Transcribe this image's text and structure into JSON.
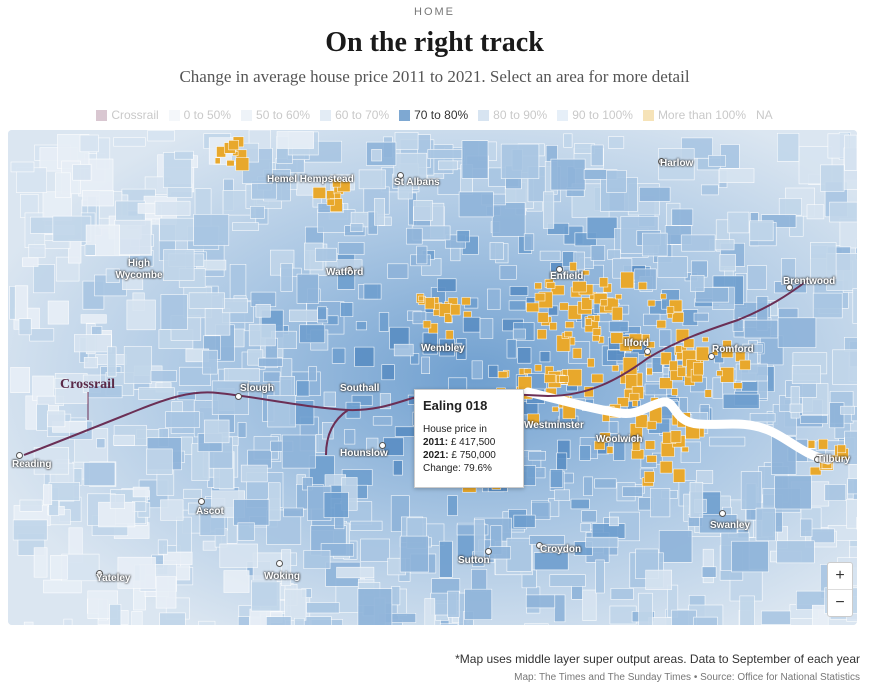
{
  "header": {
    "section": "HOME",
    "title": "On the right track",
    "subtitle": "Change in average house price 2011 to 2021. Select an area for more detail"
  },
  "legend": [
    {
      "label": "Crossrail",
      "color": "#d9c7d1",
      "active": false
    },
    {
      "label": "0 to 50%",
      "color": "#f4f7fa",
      "active": false
    },
    {
      "label": "50 to 60%",
      "color": "#eef3f8",
      "active": false
    },
    {
      "label": "60 to 70%",
      "color": "#e3ecf5",
      "active": false
    },
    {
      "label": "70 to 80%",
      "color": "#7ea8d2",
      "active": true
    },
    {
      "label": "80 to 90%",
      "color": "#d7e4f1",
      "active": false
    },
    {
      "label": "90 to 100%",
      "color": "#e6eff8",
      "active": false
    },
    {
      "label": "More than 100%",
      "color": "#f6e3b8",
      "active": false
    },
    {
      "label": "NA",
      "color": "#ffffff",
      "active": false
    }
  ],
  "map": {
    "crossrail_label": "Crossrail",
    "places": [
      "Harlow",
      "Hemel Hempstead",
      "St Albans",
      "High Wycombe",
      "Watford",
      "Enfield",
      "Brentwood",
      "Ilford",
      "Romford",
      "Wembley",
      "Slough",
      "Southall",
      "Reading",
      "Hounslow",
      "Westminster",
      "Woolwich",
      "Tilbury",
      "Ascot",
      "Swanley",
      "Croydon",
      "Sutton",
      "Yateley",
      "Woking"
    ],
    "colors": {
      "highlight": "#e8a82c",
      "crossrail": "#6b2f55",
      "river": "#ffffff"
    }
  },
  "tooltip": {
    "area": "Ealing 018",
    "line1": "House price in",
    "y2011_label": "2011:",
    "y2011_value": "£ 417,500",
    "y2021_label": "2021:",
    "y2021_value": "£ 750,000",
    "change": "Change: 79.6%"
  },
  "zoom": {
    "in": "+",
    "out": "−"
  },
  "footer": {
    "note": "*Map uses middle layer super output areas. Data to September of each year",
    "source": "Map: The Times and The Sunday Times • Source: Office for National Statistics"
  }
}
